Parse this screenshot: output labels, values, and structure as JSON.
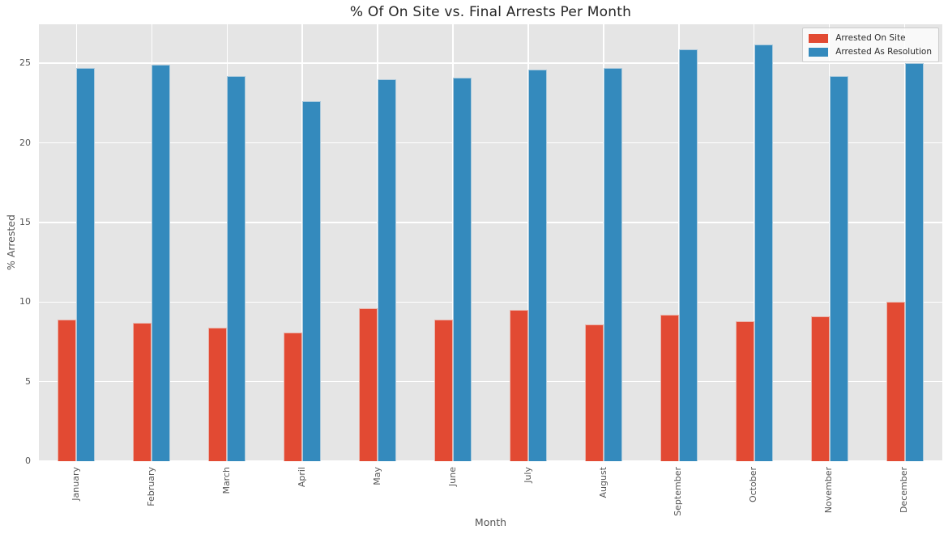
{
  "chart_data": {
    "type": "bar",
    "title": "% Of On Site vs. Final Arrests Per Month",
    "xlabel": "Month",
    "ylabel": "% Arrested",
    "categories": [
      "January",
      "February",
      "March",
      "April",
      "May",
      "June",
      "July",
      "August",
      "September",
      "October",
      "November",
      "December"
    ],
    "series": [
      {
        "name": "Arrested On Site",
        "color": "#E24A33",
        "values": [
          8.9,
          8.7,
          8.4,
          8.1,
          9.6,
          8.9,
          9.5,
          8.6,
          9.2,
          8.8,
          9.1,
          10.0
        ]
      },
      {
        "name": "Arrested As Resolution",
        "color": "#348ABD",
        "values": [
          24.7,
          24.9,
          24.2,
          22.6,
          24.0,
          24.1,
          24.6,
          24.7,
          25.9,
          26.2,
          24.2,
          25.0
        ]
      }
    ],
    "ylim": [
      0,
      27.45
    ],
    "yticks": [
      0,
      5,
      10,
      15,
      20,
      25
    ],
    "grid": true,
    "legend_position": "upper right",
    "style": {
      "plot_bg": "#E5E5E5",
      "grid_color": "#FFFFFF",
      "tick_color": "#555555",
      "label_color": "#555555",
      "title_color": "#262626",
      "legend_bg": "#F4F4F4",
      "legend_border": "#CCCCCC",
      "figure_bg": "#FFFFFF"
    }
  }
}
